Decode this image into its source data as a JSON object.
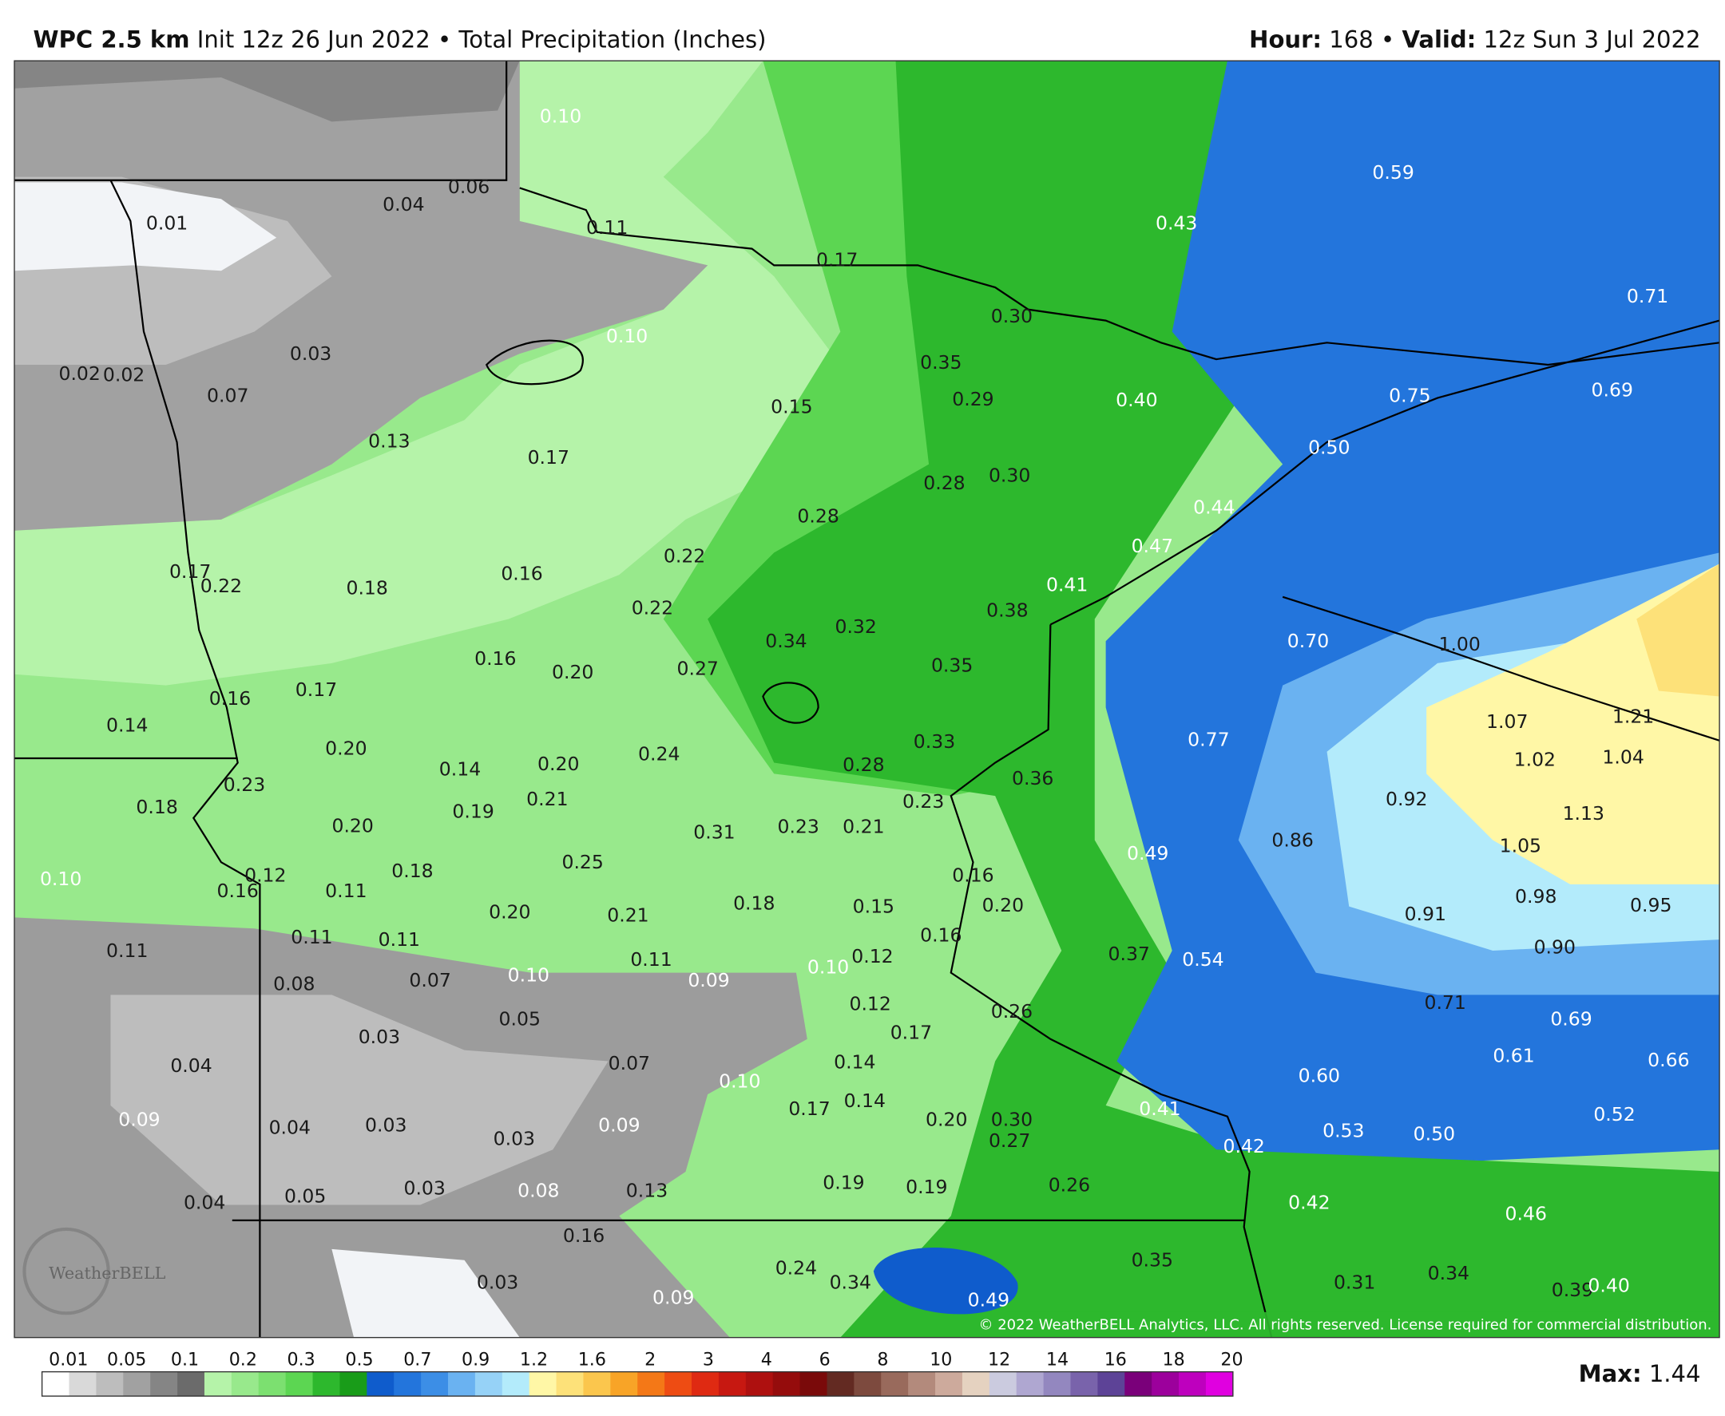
{
  "header": {
    "model": "WPC 2.5 km",
    "description": "Init 12z 26 Jun 2022 • Total Precipitation (Inches)",
    "hour_label": "Hour:",
    "hour": "168",
    "separator": "•",
    "valid_label": "Valid:",
    "valid": "12z Sun 3 Jul 2022"
  },
  "map": {
    "labels": [
      "0.10",
      "0.04",
      "0.06",
      "0.01",
      "0.11",
      "0.17",
      "0.10",
      "0.30",
      "0.03",
      "0.02",
      "0.02",
      "0.07",
      "0.35",
      "0.29",
      "0.40",
      "0.15",
      "0.13",
      "0.17",
      "0.28",
      "0.30",
      "0.28",
      "0.59",
      "0.43",
      "0.71",
      "0.75",
      "0.69",
      "0.50",
      "0.44",
      "0.47",
      "0.41",
      "0.22",
      "0.16",
      "0.17",
      "0.22",
      "0.18",
      "0.22",
      "0.38",
      "0.34",
      "0.32",
      "0.70",
      "1.00",
      "0.16",
      "0.20",
      "0.27",
      "0.35",
      "0.16",
      "0.17",
      "0.14",
      "1.07",
      "1.21",
      "0.77",
      "0.33",
      "0.20",
      "1.02",
      "1.04",
      "0.14",
      "0.20",
      "0.24",
      "0.28",
      "0.36",
      "0.23",
      "0.18",
      "0.21",
      "0.19",
      "0.23",
      "0.92",
      "1.13",
      "0.20",
      "0.31",
      "0.23",
      "0.21",
      "0.86",
      "1.05",
      "0.49",
      "0.18",
      "0.25",
      "0.10",
      "0.12",
      "0.16",
      "0.11",
      "0.16",
      "0.98",
      "0.95",
      "0.20",
      "0.21",
      "0.18",
      "0.15",
      "0.20",
      "0.91",
      "0.16",
      "0.11",
      "0.11",
      "0.11",
      "0.90",
      "0.37",
      "0.54",
      "0.11",
      "0.12",
      "0.10",
      "0.08",
      "0.07",
      "0.10",
      "0.09",
      "0.12",
      "0.71",
      "0.26",
      "0.17",
      "0.05",
      "0.69",
      "0.03",
      "0.04",
      "0.07",
      "0.14",
      "0.61",
      "0.66",
      "0.60",
      "0.10",
      "0.17",
      "0.14",
      "0.41",
      "0.09",
      "0.04",
      "0.03",
      "0.09",
      "0.03",
      "0.20",
      "0.30",
      "0.27",
      "0.52",
      "0.53",
      "0.50",
      "0.42",
      "0.04",
      "0.05",
      "0.03",
      "0.08",
      "0.13",
      "0.19",
      "0.19",
      "0.26",
      "0.42",
      "0.46",
      "0.16",
      "0.24",
      "0.34",
      "0.35",
      "0.49",
      "0.03",
      "0.09",
      "0.31",
      "0.34",
      "0.39",
      "0.40"
    ],
    "logo": "WeatherBELL",
    "copyright": "© 2022 WeatherBELL Analytics, LLC. All rights reserved. License required for commercial distribution."
  },
  "colorbar": {
    "labels": [
      "0.01",
      "0.05",
      "0.1",
      "0.2",
      "0.3",
      "0.5",
      "0.7",
      "0.9",
      "1.2",
      "1.6",
      "2",
      "3",
      "4",
      "6",
      "8",
      "10",
      "12",
      "14",
      "16",
      "18",
      "20"
    ],
    "colors": [
      "#ffffff",
      "#d9d9d9",
      "#bdbdbd",
      "#a1a1a1",
      "#858585",
      "#6b6b6b",
      "#b5f3a9",
      "#98e98c",
      "#7ce070",
      "#5cd652",
      "#2db82d",
      "#199c19",
      "#0f5ccc",
      "#2375dc",
      "#3c8ee6",
      "#6ab2f1",
      "#96d2f7",
      "#b3ebfb",
      "#fff7a6",
      "#fde179",
      "#fbc64d",
      "#f8a427",
      "#f47817",
      "#ee4c13",
      "#df2a12",
      "#c71811",
      "#ae100f",
      "#950c0c",
      "#7a0a0a",
      "#632a22",
      "#7d4a3e",
      "#996a5c",
      "#b38a7c",
      "#cdaa9c",
      "#e5d2c0",
      "#cbcbdf",
      "#afa7d1",
      "#9387bf",
      "#7963ab",
      "#5d4397",
      "#7a007a",
      "#9c009c",
      "#be00be",
      "#e000e0"
    ]
  },
  "footer": {
    "max_label": "Max:",
    "max": "1.44"
  }
}
